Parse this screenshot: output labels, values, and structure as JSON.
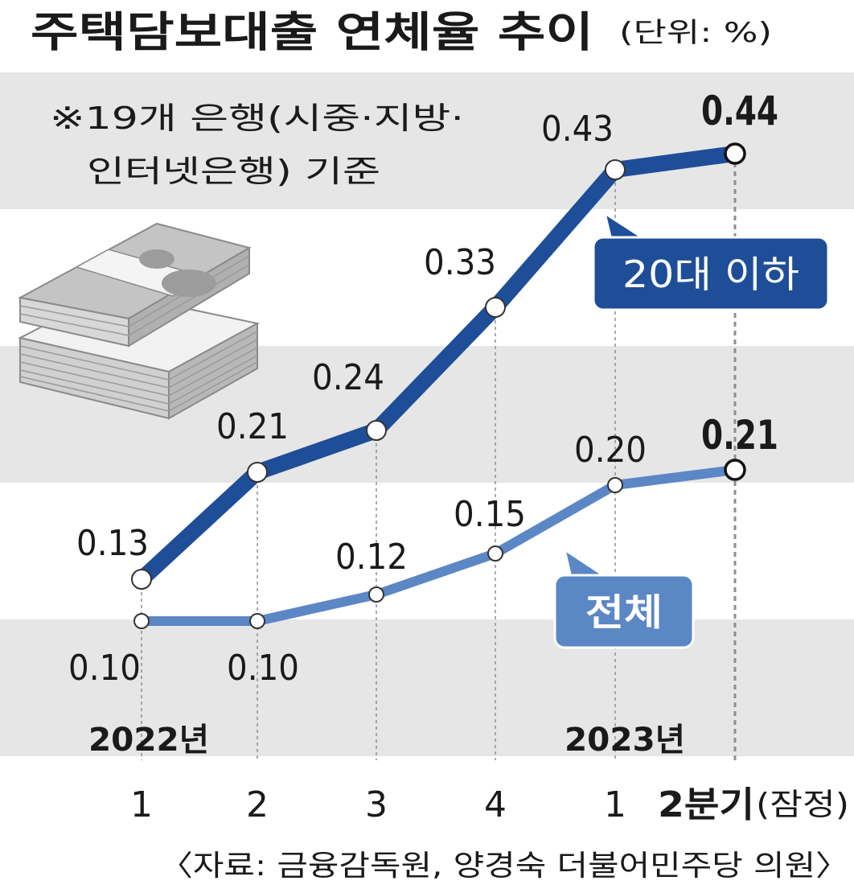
{
  "chart_data": {
    "type": "line",
    "title": "주택담보대출 연체율 추이",
    "unit": "(단위: %)",
    "note_line1": "※19개 은행(시중·지방·",
    "note_line2": "인터넷은행) 기준",
    "categories": [
      "1",
      "2",
      "3",
      "4",
      "1",
      "2분기"
    ],
    "last_category_suffix": "(잠정)",
    "year_labels": [
      "2022년",
      "2023년"
    ],
    "series": [
      {
        "name": "20대 이하",
        "values": [
          0.13,
          0.21,
          0.24,
          0.33,
          0.43,
          0.44
        ],
        "labels": [
          "0.13",
          "0.21",
          "0.24",
          "0.33",
          "0.43",
          "0.44"
        ],
        "color": "#1f4e98"
      },
      {
        "name": "전체",
        "values": [
          0.1,
          0.1,
          0.12,
          0.15,
          0.2,
          0.21
        ],
        "labels": [
          "0.10",
          "0.10",
          "0.12",
          "0.15",
          "0.20",
          "0.21"
        ],
        "color": "#5b87c5"
      }
    ],
    "source": "〈자료: 금융감독원, 양경숙 더불어민주당 의원〉",
    "colors": {
      "band": "#e6e6e6",
      "guide": "#999999",
      "text": "#1a1a1a"
    }
  }
}
